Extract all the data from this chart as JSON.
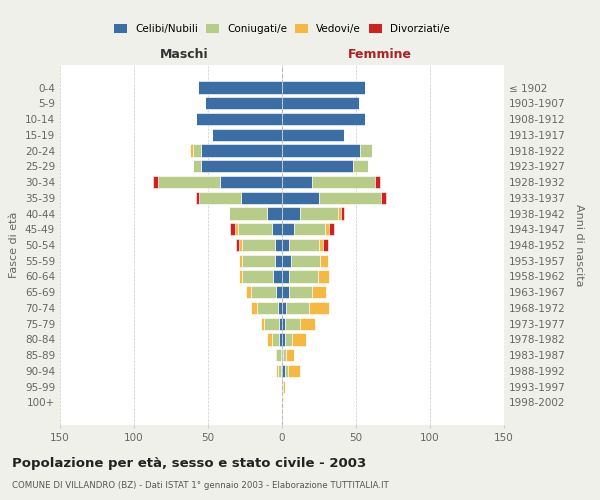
{
  "age_groups": [
    "0-4",
    "5-9",
    "10-14",
    "15-19",
    "20-24",
    "25-29",
    "30-34",
    "35-39",
    "40-44",
    "45-49",
    "50-54",
    "55-59",
    "60-64",
    "65-69",
    "70-74",
    "75-79",
    "80-84",
    "85-89",
    "90-94",
    "95-99",
    "100+"
  ],
  "birth_years": [
    "1998-2002",
    "1993-1997",
    "1988-1992",
    "1983-1987",
    "1978-1982",
    "1973-1977",
    "1968-1972",
    "1963-1967",
    "1958-1962",
    "1953-1957",
    "1948-1952",
    "1943-1947",
    "1938-1942",
    "1933-1937",
    "1928-1932",
    "1923-1927",
    "1918-1922",
    "1913-1917",
    "1908-1912",
    "1903-1907",
    "≤ 1902"
  ],
  "male_celibi": [
    57,
    52,
    58,
    47,
    55,
    55,
    42,
    28,
    10,
    7,
    5,
    5,
    6,
    4,
    3,
    2,
    2,
    1,
    1,
    0,
    0
  ],
  "male_coniugati": [
    0,
    0,
    0,
    0,
    5,
    5,
    42,
    28,
    26,
    23,
    22,
    22,
    21,
    17,
    14,
    10,
    5,
    3,
    2,
    0,
    0
  ],
  "male_vedovi": [
    0,
    0,
    0,
    0,
    2,
    0,
    0,
    0,
    0,
    2,
    2,
    2,
    2,
    3,
    4,
    2,
    3,
    1,
    1,
    0,
    0
  ],
  "male_divorziati": [
    0,
    0,
    0,
    0,
    0,
    0,
    3,
    2,
    0,
    3,
    2,
    0,
    0,
    0,
    0,
    0,
    0,
    0,
    0,
    0,
    0
  ],
  "female_celibi": [
    56,
    52,
    56,
    42,
    53,
    48,
    20,
    25,
    12,
    8,
    5,
    6,
    5,
    5,
    3,
    2,
    2,
    1,
    2,
    1,
    0
  ],
  "female_coniugati": [
    0,
    0,
    0,
    0,
    8,
    10,
    43,
    42,
    26,
    21,
    20,
    20,
    19,
    15,
    15,
    10,
    5,
    2,
    2,
    0,
    0
  ],
  "female_vedovi": [
    0,
    0,
    0,
    0,
    0,
    0,
    0,
    0,
    2,
    3,
    3,
    5,
    8,
    10,
    14,
    10,
    9,
    5,
    8,
    1,
    1
  ],
  "female_divorziati": [
    0,
    0,
    0,
    0,
    0,
    0,
    3,
    3,
    2,
    3,
    3,
    0,
    0,
    0,
    0,
    0,
    0,
    0,
    0,
    0,
    0
  ],
  "color_celibi": "#3a6ea5",
  "color_coniugati": "#b8cc8a",
  "color_vedovi": "#f5b942",
  "color_divorziati": "#cc2222",
  "title": "Popolazione per età, sesso e stato civile - 2003",
  "subtitle": "COMUNE DI VILLANDRO (BZ) - Dati ISTAT 1° gennaio 2003 - Elaborazione TUTTITALIA.IT",
  "xlabel_left": "Maschi",
  "xlabel_right": "Femmine",
  "ylabel_left": "Fasce di età",
  "ylabel_right": "Anni di nascita",
  "xlim": 150,
  "background_color": "#f0f0ea",
  "bar_background": "#ffffff"
}
